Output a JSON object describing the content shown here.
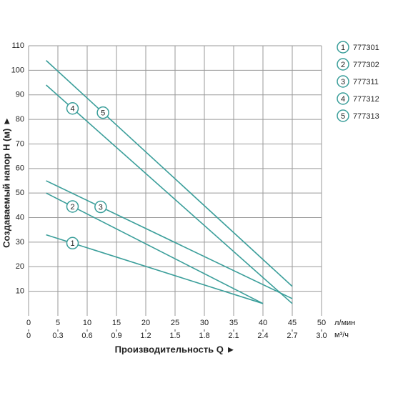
{
  "chart_data": {
    "type": "line",
    "xlabel": "Производительность Q ►",
    "ylabel": "Создаваемый напор H (м) ►",
    "x_unit": "л/мин",
    "x2_unit": "м³/ч",
    "xlim": [
      0,
      50
    ],
    "xticks": [
      0,
      5,
      10,
      15,
      20,
      25,
      30,
      35,
      40,
      45,
      50
    ],
    "x2lim": [
      0,
      3
    ],
    "x2ticks": [
      0,
      0.3,
      0.6,
      0.9,
      1.2,
      1.5,
      1.8,
      2.1,
      2.4,
      2.7,
      {
        "value": 3,
        "label": "3.0"
      }
    ],
    "ylim": [
      0,
      110
    ],
    "yticks": [
      10,
      20,
      30,
      40,
      50,
      60,
      70,
      80,
      90,
      100,
      110
    ],
    "grid": true,
    "series": [
      {
        "name": "777301",
        "label": "1",
        "color": "#3a9e9a",
        "x": [
          3,
          40
        ],
        "values": [
          33,
          5
        ]
      },
      {
        "name": "777302",
        "label": "2",
        "color": "#3a9e9a",
        "x": [
          3,
          40
        ],
        "values": [
          50,
          5
        ]
      },
      {
        "name": "777311",
        "label": "3",
        "color": "#3a9e9a",
        "x": [
          3,
          45
        ],
        "values": [
          55,
          7
        ]
      },
      {
        "name": "777312",
        "label": "4",
        "color": "#3a9e9a",
        "x": [
          3,
          45
        ],
        "values": [
          94,
          5
        ]
      },
      {
        "name": "777313",
        "label": "5",
        "color": "#3a9e9a",
        "x": [
          3,
          45
        ],
        "values": [
          104,
          12
        ]
      }
    ]
  }
}
